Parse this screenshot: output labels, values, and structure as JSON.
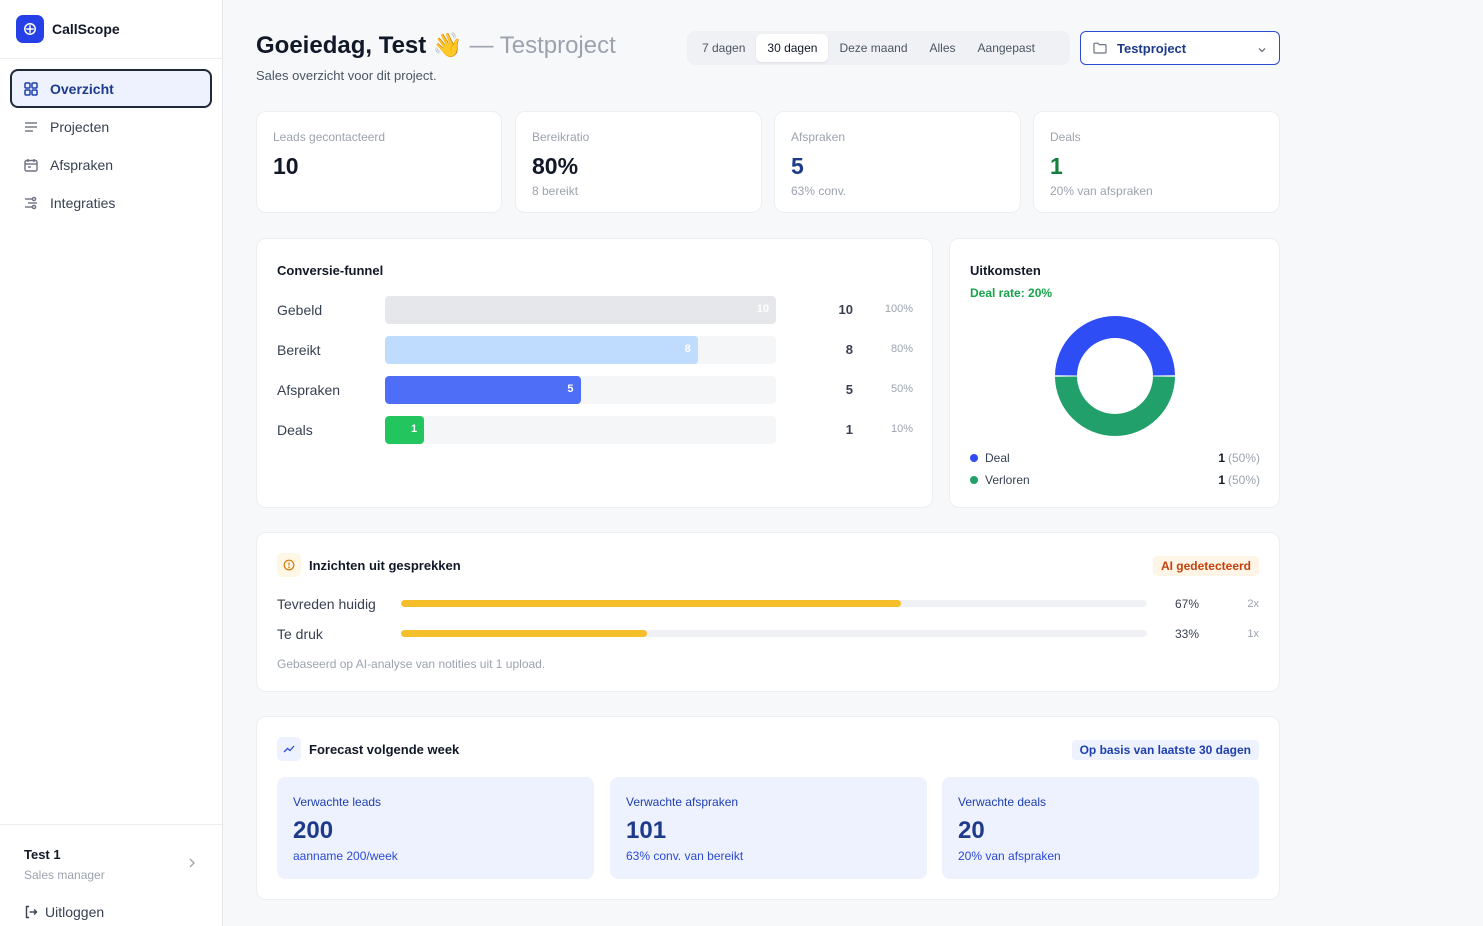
{
  "app": {
    "name": "CallScope"
  },
  "sidebar": {
    "items": [
      {
        "label": "Overzicht",
        "icon": "grid-icon",
        "active": true
      },
      {
        "label": "Projecten",
        "icon": "list-icon"
      },
      {
        "label": "Afspraken",
        "icon": "calendar-icon"
      },
      {
        "label": "Integraties",
        "icon": "integrations-icon"
      }
    ],
    "user": {
      "name": "Test 1",
      "role": "Sales manager"
    },
    "logout": "Uitloggen"
  },
  "header": {
    "greeting": "Goeiedag, Test 👋",
    "project_suffix": "— Testproject",
    "subtitle": "Sales overzicht voor dit project.",
    "range_tabs": [
      "7 dagen",
      "30 dagen",
      "Deze maand",
      "Alles",
      "Aangepast"
    ],
    "active_range": "30 dagen",
    "project_select": "Testproject"
  },
  "kpis": [
    {
      "label": "Leads gecontacteerd",
      "value": "10",
      "sub": ""
    },
    {
      "label": "Bereikratio",
      "value": "80%",
      "sub": "8 bereikt"
    },
    {
      "label": "Afspraken",
      "value": "5",
      "sub": "63% conv."
    },
    {
      "label": "Deals",
      "value": "1",
      "sub": "20% van afspraken"
    }
  ],
  "funnel": {
    "title": "Conversie-funnel",
    "rows": [
      {
        "label": "Gebeld",
        "value": 10,
        "count": "10",
        "pct": "100%",
        "color": "#e5e7eb"
      },
      {
        "label": "Bereikt",
        "value": 8,
        "count": "8",
        "pct": "80%",
        "color": "#bfdbfe"
      },
      {
        "label": "Afspraken",
        "value": 5,
        "count": "5",
        "pct": "50%",
        "color": "#4f6ef7"
      },
      {
        "label": "Deals",
        "value": 1,
        "count": "1",
        "pct": "10%",
        "color": "#22c55e"
      }
    ],
    "max": 10
  },
  "outcomes": {
    "title": "Uitkomsten",
    "deal_rate": "Deal rate: 20%",
    "legend": [
      {
        "name": "Deal",
        "count": "1",
        "pct": "(50%)",
        "color": "#2f4df5"
      },
      {
        "name": "Verloren",
        "count": "1",
        "pct": "(50%)",
        "color": "#22a06b"
      }
    ]
  },
  "chart_data": {
    "type": "pie",
    "categories": [
      "Deal",
      "Verloren"
    ],
    "values": [
      1,
      1
    ],
    "colors": [
      "#2f4df5",
      "#22a06b"
    ],
    "title": "Uitkomsten"
  },
  "insights": {
    "title": "Inzichten uit gesprekken",
    "badge": "AI gedetecteerd",
    "rows": [
      {
        "label": "Tevreden huidig",
        "fraction": 0.67,
        "pct": "67%",
        "count": "2x"
      },
      {
        "label": "Te druk",
        "fraction": 0.33,
        "pct": "33%",
        "count": "1x"
      }
    ],
    "footnote": "Gebaseerd op AI-analyse van notities uit 1 upload."
  },
  "forecast": {
    "title": "Forecast volgende week",
    "badge": "Op basis van laatste 30 dagen",
    "boxes": [
      {
        "label": "Verwachte leads",
        "value": "200",
        "sub": "aanname 200/week"
      },
      {
        "label": "Verwachte afspraken",
        "value": "101",
        "sub": "63% conv. van bereikt"
      },
      {
        "label": "Verwachte deals",
        "value": "20",
        "sub": "20% van afspraken"
      }
    ]
  }
}
